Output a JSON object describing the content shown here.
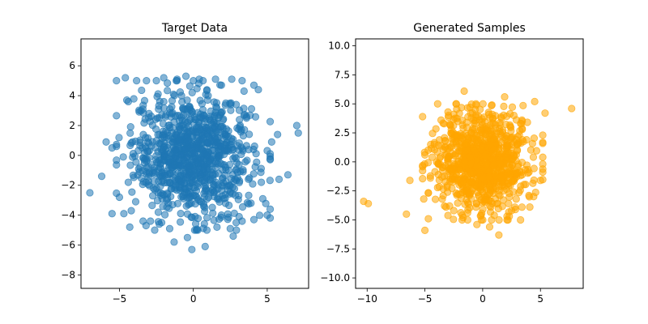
{
  "chart_data": [
    {
      "type": "scatter",
      "title": "Target Data",
      "xlabel": "",
      "ylabel": "",
      "xlim": [
        -7.6,
        7.8
      ],
      "ylim": [
        -8.9,
        7.8
      ],
      "xticks": [
        -5,
        0,
        5
      ],
      "yticks": [
        -8,
        -6,
        -4,
        -2,
        0,
        2,
        4,
        6
      ],
      "xtick_labels": [
        "−5",
        "0",
        "5"
      ],
      "ytick_labels": [
        "−8",
        "−6",
        "−4",
        "−2",
        "0",
        "2",
        "4",
        "6"
      ],
      "grid": false,
      "color": "#1f77b4",
      "alpha": 0.55,
      "distribution": {
        "center": [
          0,
          0
        ],
        "std": [
          2.0,
          2.0
        ],
        "n_points": 1000
      },
      "series": [
        {
          "x": [
            -4.6,
            -4.5,
            -4.4,
            -5.9,
            -5.5,
            -6.2,
            -7.0,
            -5.0,
            -3.9,
            -4.2,
            -4.3,
            -3.2,
            -2.9,
            -2.5,
            -2.0,
            -1.1,
            -0.5,
            0.4,
            1.5,
            1.9,
            2.6,
            3.3,
            4.1,
            4.4,
            5.3,
            5.7,
            6.4,
            7.0,
            7.1,
            4.1,
            3.3,
            1.6,
            0.8,
            -0.1,
            -1.3,
            -2.3,
            2.5,
            2.9,
            3.1,
            4.7,
            5.0,
            2.7,
            1.9,
            0.2,
            -0.4,
            -1.6,
            -3.7,
            -4.4,
            -3.0,
            -2.0,
            -0.8,
            1.0,
            2.2,
            3.6,
            -5.2,
            -4.7,
            -2.6,
            -1.4,
            0.7,
            3.9,
            4.6,
            5.8,
            3.6,
            -5.5,
            -3.4
          ],
          "y": [
            5.2,
            3.7,
            3.6,
            0.9,
            0.5,
            -1.4,
            -2.5,
            -2.8,
            -3.1,
            -3.7,
            -4.8,
            -4.7,
            -4.4,
            5.0,
            5.2,
            5.1,
            5.3,
            5.1,
            5.1,
            4.7,
            5.1,
            5.0,
            4.7,
            4.4,
            0.9,
            1.4,
            -1.3,
            2.0,
            1.5,
            -4.3,
            -4.4,
            -4.8,
            -6.1,
            -6.3,
            -5.8,
            -4.6,
            -4.9,
            -4.5,
            -4.1,
            -2.9,
            -4.0,
            -5.4,
            -4.0,
            -5.0,
            -5.5,
            -4.9,
            -0.9,
            -1.8,
            2.8,
            3.6,
            4.0,
            4.0,
            3.5,
            2.5,
            0.6,
            -3.9,
            -2.3,
            -3.3,
            -3.4,
            -3.2,
            -1.8,
            -1.6,
            2.6,
            -3.9,
            -4.4
          ]
        }
      ]
    },
    {
      "type": "scatter",
      "title": "Generated Samples",
      "xlabel": "",
      "ylabel": "",
      "xlim": [
        -11.0,
        8.7
      ],
      "ylim": [
        -10.9,
        10.6
      ],
      "xticks": [
        -10,
        -5,
        0,
        5
      ],
      "yticks": [
        -10.0,
        -7.5,
        -5.0,
        -2.5,
        0.0,
        2.5,
        5.0,
        7.5,
        10.0
      ],
      "xtick_labels": [
        "−10",
        "−5",
        "0",
        "5"
      ],
      "ytick_labels": [
        "−10.0",
        "−7.5",
        "−5.0",
        "−2.5",
        "0.0",
        "2.5",
        "5.0",
        "7.5",
        "10.0"
      ],
      "grid": false,
      "color": "#ffa500",
      "alpha": 0.55,
      "distribution": {
        "center": [
          0,
          0
        ],
        "std": [
          2.0,
          2.0
        ],
        "n_points": 1000
      },
      "series": [
        {
          "x": [
            -10.3,
            -9.9,
            -6.6,
            -5.0,
            -4.7,
            -5.1,
            -5.2,
            -6.3,
            -4.2,
            1.4,
            2.3,
            0.6,
            -1.3,
            -1.7,
            2.5,
            3.4,
            4.0,
            5.0,
            5.2,
            7.7,
            4.5,
            5.4,
            5.2,
            3.4,
            1.9,
            -2.5,
            -3.0,
            -3.6,
            -4.5,
            -5.0,
            -1.6,
            0.8,
            2.7,
            -0.5,
            -2.5,
            -3.3,
            3.8,
            2.9,
            1.0,
            -1.1
          ],
          "y": [
            -3.4,
            -3.6,
            -4.5,
            -5.9,
            -4.9,
            -3.2,
            3.9,
            -1.6,
            1.5,
            -6.3,
            -4.7,
            -5.6,
            -5.0,
            -4.8,
            -4.2,
            -3.9,
            -2.9,
            -1.6,
            0.4,
            4.6,
            5.2,
            4.2,
            2.3,
            3.6,
            5.6,
            4.1,
            4.3,
            3.6,
            1.5,
            0.6,
            6.1,
            4.9,
            4.0,
            -5.4,
            -4.2,
            -3.8,
            1.9,
            -3.2,
            -4.6,
            4.7
          ]
        }
      ]
    }
  ]
}
